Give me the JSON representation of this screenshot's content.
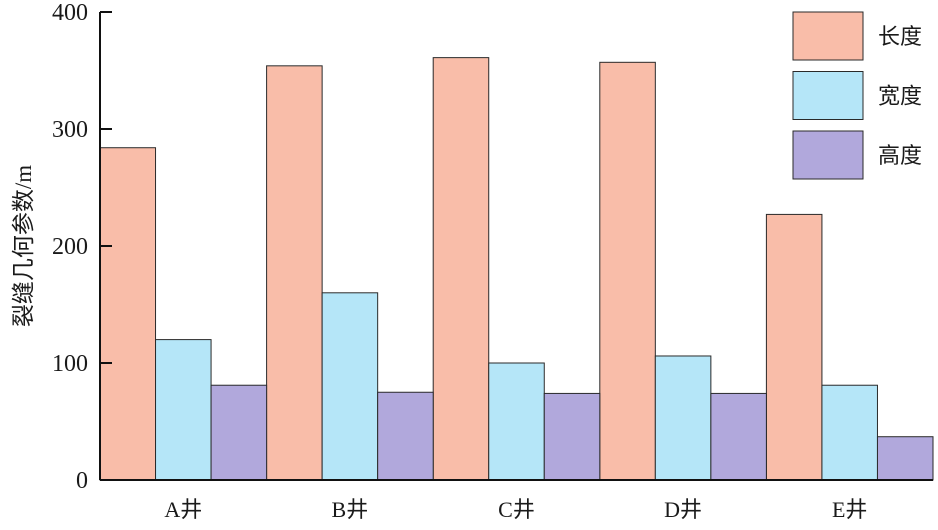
{
  "chart_data": {
    "type": "bar",
    "categories": [
      "A井",
      "B井",
      "C井",
      "D井",
      "E井"
    ],
    "series": [
      {
        "name": "长度",
        "values": [
          284,
          354,
          361,
          357,
          227
        ],
        "color": "#F9BDA9"
      },
      {
        "name": "宽度",
        "values": [
          120,
          160,
          100,
          106,
          81
        ],
        "color": "#B5E6F8"
      },
      {
        "name": "高度",
        "values": [
          81,
          75,
          74,
          74,
          37
        ],
        "color": "#B1A8DC"
      }
    ],
    "ylabel": "裂缝几何参数/m",
    "ylim": [
      0,
      400
    ],
    "yticks": [
      0,
      100,
      200,
      300,
      400
    ],
    "legend": "top-right",
    "grid": false
  }
}
